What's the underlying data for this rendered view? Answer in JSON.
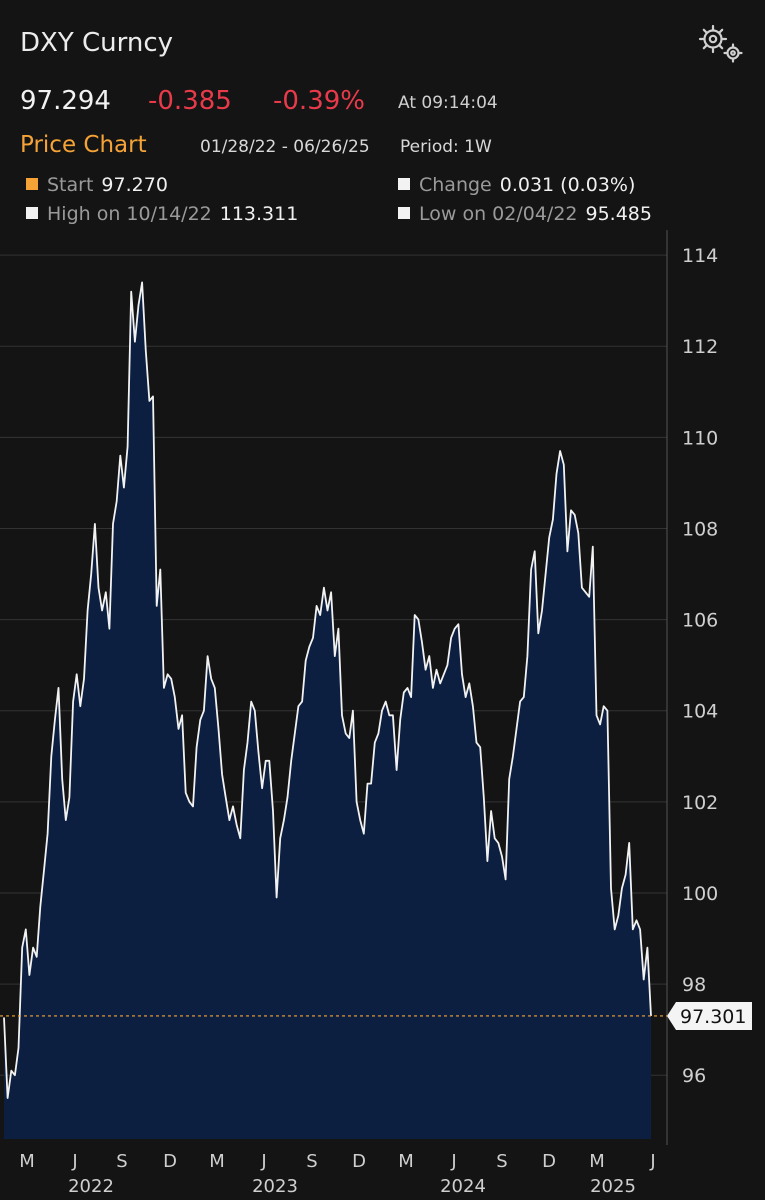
{
  "header": {
    "title": "DXY Curncy",
    "last_price": "97.294",
    "net_change": "-0.385",
    "pct_change": "-0.39%",
    "time": "At 09:14:04",
    "chart_label": "Price Chart",
    "date_range": "01/28/22 - 06/26/25",
    "period": "Period: 1W",
    "settings_icon": "gear-icon"
  },
  "stats": {
    "start_label": "Start",
    "start_value": "97.270",
    "change_label": "Change",
    "change_value": "0.031 (0.03%)",
    "high_label": "High on 10/14/22",
    "high_value": "113.311",
    "low_label": "Low on 02/04/22",
    "low_value": "95.485"
  },
  "colors": {
    "background": "#141414",
    "negative": "#e83a4a",
    "accent": "#f5a337",
    "area_fill": "#0c1f40",
    "line": "#f2f2f2",
    "grid": "#333333"
  },
  "chart_data": {
    "type": "area",
    "x_start": "2022-01-28",
    "x_step_days": 7,
    "x_tick_labels": [
      "M",
      "J",
      "S",
      "D",
      "M",
      "J",
      "S",
      "D",
      "M",
      "J",
      "S",
      "D",
      "M",
      "J"
    ],
    "year_labels": [
      "2022",
      "2023",
      "2024",
      "2025"
    ],
    "y_ticks": [
      96,
      98,
      100,
      102,
      104,
      106,
      108,
      110,
      112,
      114
    ],
    "ylim": [
      94.6,
      114.2
    ],
    "last_value_label": "97.301",
    "reference_value": 97.301,
    "values": [
      97.27,
      95.5,
      96.1,
      96.0,
      96.6,
      98.8,
      99.2,
      98.2,
      98.8,
      98.6,
      99.7,
      100.5,
      101.3,
      103.0,
      103.8,
      104.5,
      102.5,
      101.6,
      102.1,
      104.2,
      104.8,
      104.1,
      104.7,
      106.2,
      107.0,
      108.1,
      106.7,
      106.2,
      106.6,
      105.8,
      108.1,
      108.6,
      109.6,
      108.9,
      109.8,
      113.2,
      112.1,
      112.9,
      113.4,
      111.9,
      110.8,
      110.9,
      106.3,
      107.1,
      104.5,
      104.8,
      104.7,
      104.3,
      103.6,
      103.9,
      102.2,
      102.0,
      101.9,
      103.2,
      103.8,
      104.0,
      105.2,
      104.7,
      104.5,
      103.6,
      102.6,
      102.1,
      101.6,
      101.9,
      101.5,
      101.2,
      102.7,
      103.3,
      104.2,
      104.0,
      103.1,
      102.3,
      102.9,
      102.9,
      101.8,
      99.9,
      101.2,
      101.6,
      102.1,
      102.9,
      103.5,
      104.1,
      104.2,
      105.1,
      105.4,
      105.6,
      106.3,
      106.1,
      106.7,
      106.2,
      106.6,
      105.2,
      105.8,
      103.9,
      103.5,
      103.4,
      104.0,
      102.0,
      101.6,
      101.3,
      102.4,
      102.4,
      103.3,
      103.5,
      104.0,
      104.2,
      103.9,
      103.9,
      102.7,
      103.8,
      104.4,
      104.5,
      104.3,
      106.1,
      106.0,
      105.5,
      104.9,
      105.2,
      104.5,
      104.9,
      104.6,
      104.8,
      105.0,
      105.6,
      105.8,
      105.9,
      104.8,
      104.3,
      104.6,
      104.1,
      103.3,
      103.2,
      102.1,
      100.7,
      101.8,
      101.2,
      101.1,
      100.8,
      100.3,
      102.5,
      103.0,
      103.6,
      104.2,
      104.3,
      105.2,
      107.1,
      107.5,
      105.7,
      106.2,
      107.0,
      107.8,
      108.2,
      109.2,
      109.7,
      109.4,
      107.5,
      108.4,
      108.3,
      107.9,
      106.7,
      106.6,
      106.5,
      107.6,
      103.9,
      103.7,
      104.1,
      104.0,
      100.1,
      99.2,
      99.5,
      100.1,
      100.4,
      101.1,
      99.2,
      99.4,
      99.2,
      98.1,
      98.8,
      97.3
    ]
  }
}
